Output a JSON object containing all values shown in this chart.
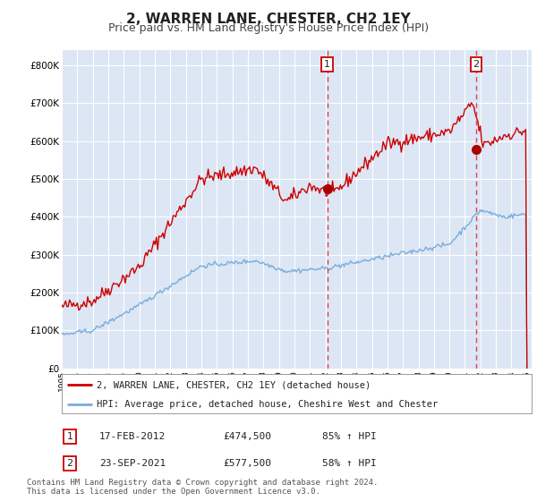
{
  "title": "2, WARREN LANE, CHESTER, CH2 1EY",
  "subtitle": "Price paid vs. HM Land Registry's House Price Index (HPI)",
  "title_fontsize": 11,
  "subtitle_fontsize": 9,
  "background_color": "#ffffff",
  "plot_bg_color": "#dce6f5",
  "grid_color": "#ffffff",
  "red_line_color": "#cc0000",
  "blue_line_color": "#7aaddc",
  "annotation_line_color": "#dd4444",
  "marker_color": "#aa0000",
  "ylim": [
    0,
    840000
  ],
  "ytick_values": [
    0,
    100000,
    200000,
    300000,
    400000,
    500000,
    600000,
    700000,
    800000
  ],
  "ytick_labels": [
    "£0",
    "£100K",
    "£200K",
    "£300K",
    "£400K",
    "£500K",
    "£600K",
    "£700K",
    "£800K"
  ],
  "sale1_year": 2012.12,
  "sale1_price": 474500,
  "sale1_label": "1",
  "sale1_date": "17-FEB-2012",
  "sale1_price_str": "£474,500",
  "sale1_pct": "85% ↑ HPI",
  "sale2_year": 2021.73,
  "sale2_price": 577500,
  "sale2_label": "2",
  "sale2_date": "23-SEP-2021",
  "sale2_price_str": "£577,500",
  "sale2_pct": "58% ↑ HPI",
  "legend_line1": "2, WARREN LANE, CHESTER, CH2 1EY (detached house)",
  "legend_line2": "HPI: Average price, detached house, Cheshire West and Chester",
  "footer1": "Contains HM Land Registry data © Crown copyright and database right 2024.",
  "footer2": "This data is licensed under the Open Government Licence v3.0."
}
